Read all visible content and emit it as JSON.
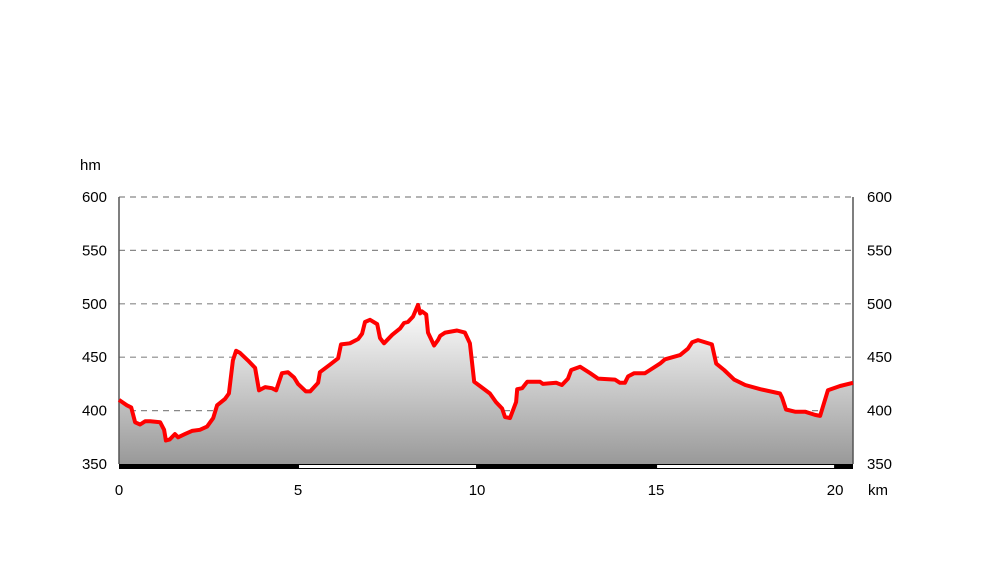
{
  "chart_data": {
    "type": "area",
    "title": "",
    "ylabel": "hm",
    "xlabel": "km",
    "xlim": [
      0,
      20.5
    ],
    "ylim": [
      350,
      600
    ],
    "x_ticks": [
      0,
      5,
      10,
      15,
      20
    ],
    "y_ticks": [
      350,
      400,
      450,
      500,
      550,
      600
    ],
    "grid": true,
    "line_color": "#ff0000",
    "fill_gradient": [
      "#ffffff",
      "#999999"
    ],
    "series": [
      {
        "x": [
          0,
          0.22,
          0.34,
          0.45,
          0.59,
          0.73,
          0.87,
          1.15,
          1.26,
          1.31,
          1.42,
          1.56,
          1.65,
          1.84,
          2.04,
          2.26,
          2.46,
          2.63,
          2.74,
          2.96,
          3.07,
          3.18,
          3.27,
          3.38,
          3.6,
          3.8,
          3.91,
          4.08,
          4.27,
          4.39,
          4.55,
          4.72,
          4.89,
          5.0,
          5.22,
          5.34,
          5.56,
          5.61,
          5.89,
          6.12,
          6.2,
          6.45,
          6.68,
          6.79,
          6.87,
          7.01,
          7.21,
          7.29,
          7.4,
          7.63,
          7.85,
          7.96,
          8.07,
          8.21,
          8.35,
          8.41,
          8.46,
          8.58,
          8.63,
          8.8,
          8.91,
          8.97,
          9.11,
          9.44,
          9.66,
          9.8,
          9.92,
          10.08,
          10.36,
          10.53,
          10.7,
          10.78,
          10.92,
          11.09,
          11.12,
          11.26,
          11.4,
          11.76,
          11.84,
          12.21,
          12.37,
          12.54,
          12.63,
          12.88,
          13.16,
          13.38,
          13.85,
          13.99,
          14.13,
          14.22,
          14.39,
          14.69,
          14.83,
          15.11,
          15.25,
          15.67,
          15.89,
          16.01,
          16.17,
          16.56,
          16.68,
          16.9,
          17.18,
          17.49,
          17.91,
          18.46,
          18.52,
          18.63,
          18.88,
          19.16,
          19.44,
          19.58,
          19.8,
          20.14,
          20.5
        ],
        "y": [
          410,
          405,
          403,
          389,
          387,
          390,
          390,
          389,
          382,
          372,
          373,
          378,
          375,
          378,
          381,
          382,
          385,
          393,
          405,
          411,
          416,
          447,
          456,
          454,
          447,
          440,
          419,
          422,
          421,
          419,
          435,
          436,
          431,
          425,
          418,
          418,
          426,
          436,
          443,
          449,
          462,
          463,
          467,
          472,
          483,
          485,
          481,
          468,
          463,
          471,
          477,
          482,
          483,
          488,
          499,
          491,
          493,
          490,
          473,
          461,
          466,
          470,
          473,
          475,
          473,
          463,
          427,
          423,
          416,
          408,
          402,
          394,
          393,
          408,
          420,
          421,
          427,
          427,
          425,
          426,
          424,
          430,
          438,
          441,
          435,
          430,
          429,
          426,
          426,
          432,
          435,
          435,
          438,
          444,
          448,
          452,
          458,
          464,
          466,
          462,
          444,
          438,
          429,
          424,
          420,
          416,
          412,
          401,
          399,
          399,
          396,
          395,
          419,
          423,
          426
        ]
      }
    ]
  }
}
